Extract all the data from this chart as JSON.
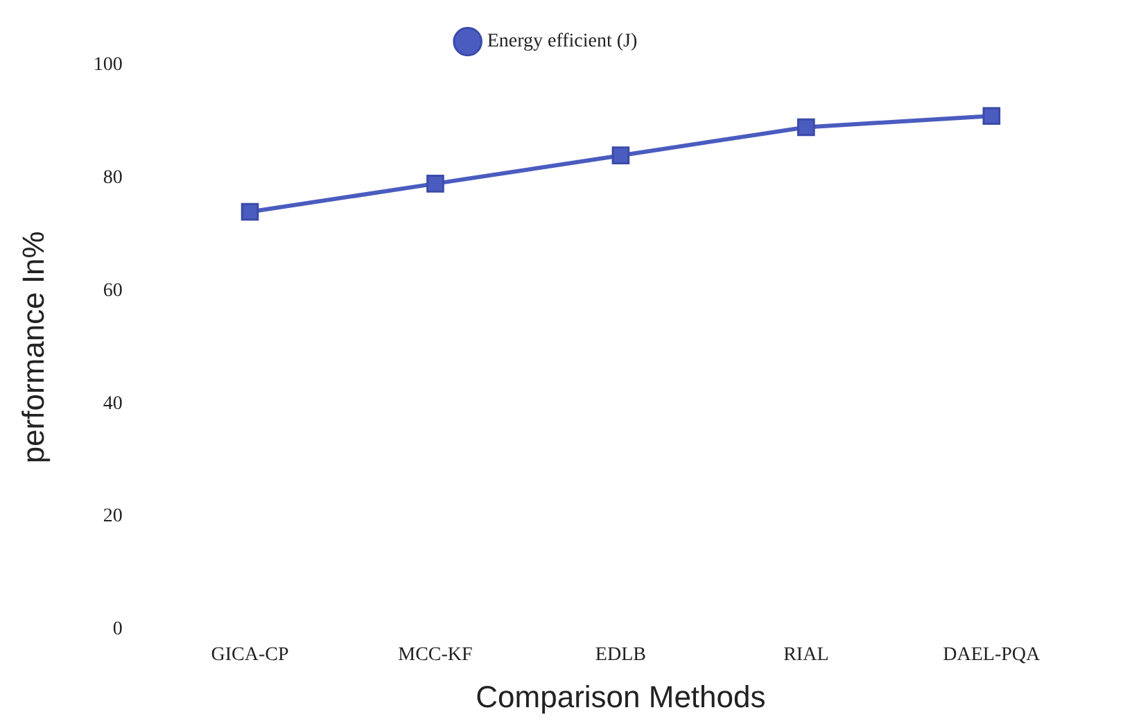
{
  "chart_data": {
    "type": "line",
    "xlabel": "Comparison Methods",
    "ylabel": "performance In%",
    "categories": [
      "GICA-CP",
      "MCC-KF",
      "EDLB",
      "RIAL",
      "DAEL-PQA"
    ],
    "series": [
      {
        "name": "Energy efficient (J)",
        "color": "#4a5cbf",
        "values": [
          74,
          79,
          84,
          89,
          91
        ]
      }
    ],
    "ylim": [
      0,
      100
    ],
    "yticks": [
      0,
      20,
      40,
      60,
      80,
      100
    ],
    "grid": false,
    "legend": "top",
    "marker": "square",
    "line_style": "solid"
  }
}
